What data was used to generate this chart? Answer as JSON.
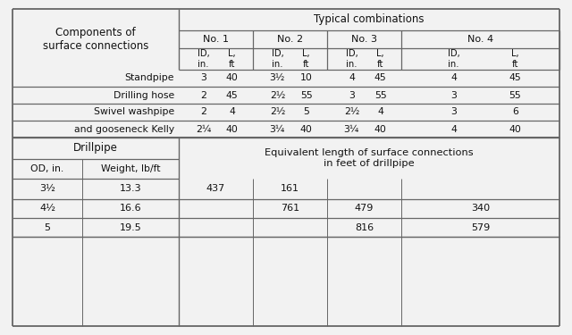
{
  "typical_combinations_header": "Typical combinations",
  "combination_numbers": [
    "No. 1",
    "No. 2",
    "No. 3",
    "No. 4"
  ],
  "components_header": "Components of\nsurface connections",
  "component_rows": [
    [
      "Standpipe",
      "3",
      "40",
      "3½",
      "10",
      "4",
      "45",
      "4",
      "45"
    ],
    [
      "Drilling hose",
      "2",
      "45",
      "2½",
      "55",
      "3",
      "55",
      "3",
      "55"
    ],
    [
      "Swivel washpipe",
      "2",
      "4",
      "2½",
      "5",
      "2½",
      "4",
      "3",
      "6"
    ],
    [
      "and gooseneck Kelly",
      "2¼",
      "40",
      "3¼",
      "40",
      "3¼",
      "40",
      "4",
      "40"
    ]
  ],
  "drillpipe_header": "Drillpipe",
  "od_weight_header": [
    "OD, in.",
    "Weight, lb/ft"
  ],
  "equiv_length_header": "Equivalent length of surface connections\nin feet of drillpipe",
  "drillpipe_rows": [
    [
      "3½",
      "13.3",
      "437",
      "161",
      "",
      ""
    ],
    [
      "4½",
      "16.6",
      "",
      "761",
      "479",
      "340"
    ],
    [
      "5",
      "19.5",
      "",
      "",
      "816",
      "579"
    ]
  ],
  "bg_color": "#f2f2f2",
  "line_color": "#666666",
  "text_color": "#111111"
}
